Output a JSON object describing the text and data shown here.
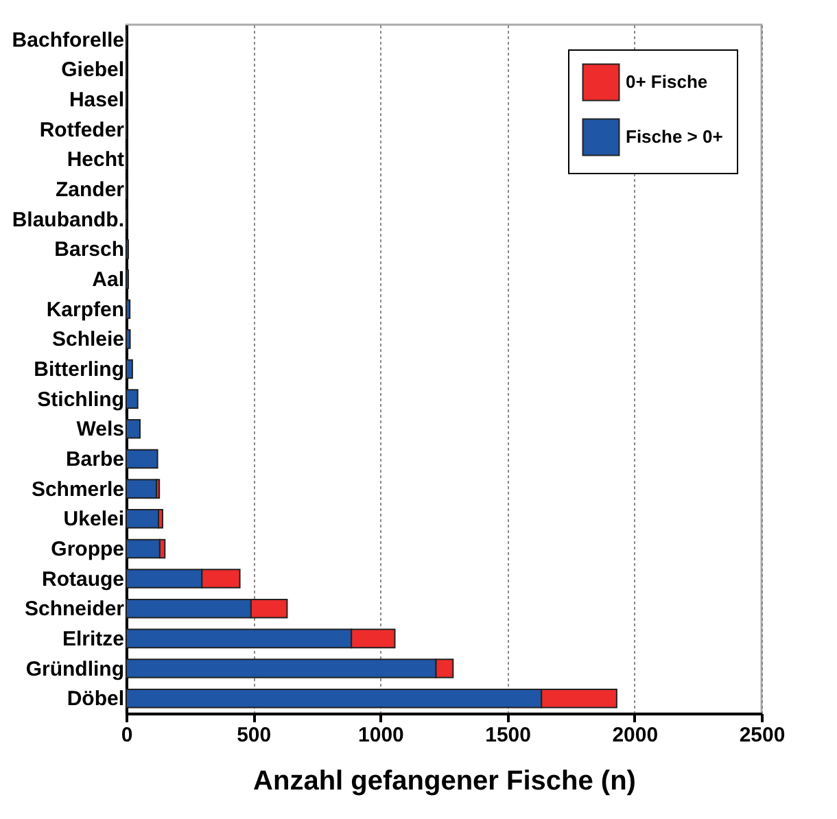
{
  "chart_data": {
    "type": "bar",
    "orientation": "horizontal",
    "stacked": true,
    "xlabel": "Anzahl gefangener Fische (n)",
    "categories": [
      "Bachforelle",
      "Giebel",
      "Hasel",
      "Rotfeder",
      "Hecht",
      "Zander",
      "Blaubandb.",
      "Barsch",
      "Aal",
      "Karpfen",
      "Schleie",
      "Bitterling",
      "Stichling",
      "Wels",
      "Barbe",
      "Schmerle",
      "Ukelei",
      "Groppe",
      "Rotauge",
      "Schneider",
      "Elritze",
      "Gründling",
      "Döbel"
    ],
    "series": [
      {
        "name": "Fische > 0+",
        "color": "#1f56a6",
        "values": [
          1,
          1,
          1,
          1,
          2,
          2,
          2,
          8,
          8,
          14,
          15,
          24,
          45,
          54,
          123,
          119,
          127,
          132,
          298,
          491,
          886,
          1219,
          1634
        ]
      },
      {
        "name": "0+ Fische",
        "color": "#ee2c2c",
        "values": [
          null,
          null,
          null,
          null,
          null,
          null,
          null,
          null,
          null,
          null,
          null,
          null,
          null,
          null,
          null,
          11,
          16,
          20,
          149,
          142,
          171,
          67,
          296
        ]
      }
    ],
    "xlim": [
      0,
      2500
    ],
    "xticks": [
      0,
      500,
      1000,
      1500,
      2000,
      2500
    ],
    "grid": "x",
    "legend": "top right"
  }
}
